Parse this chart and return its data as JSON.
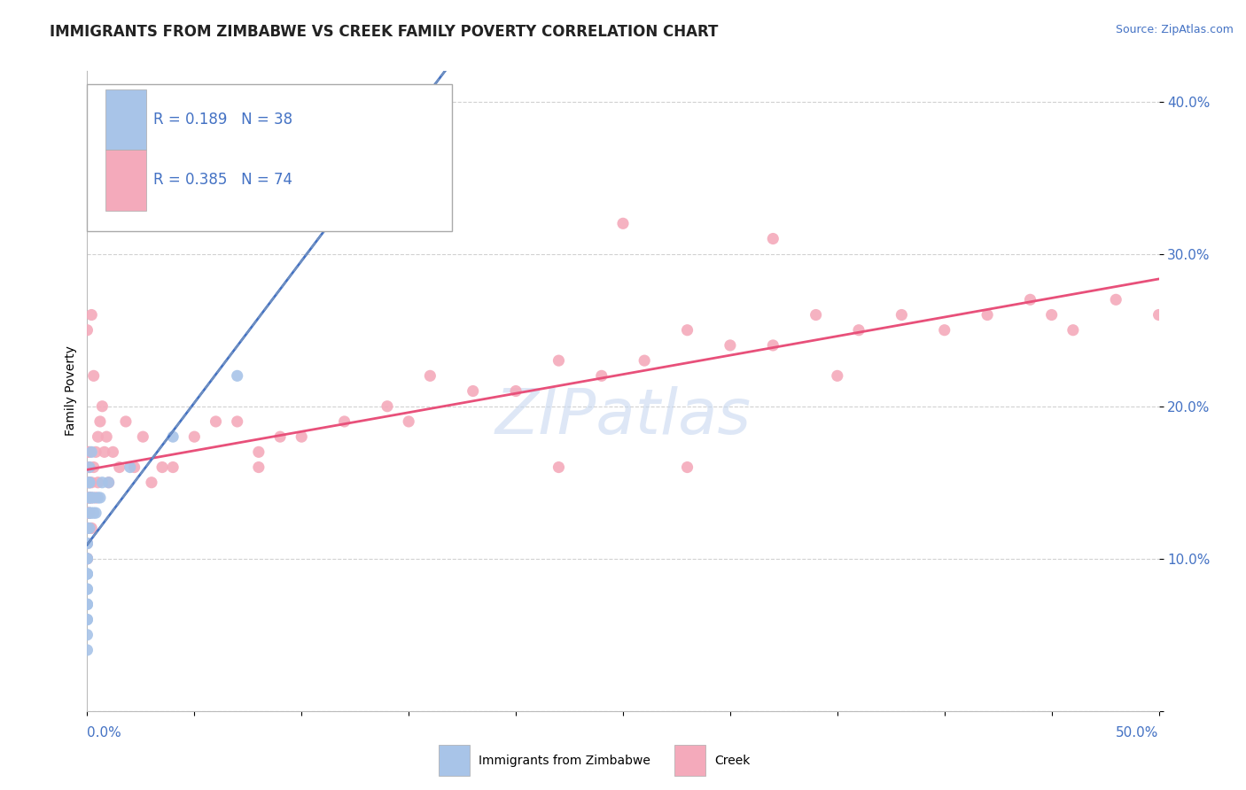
{
  "title": "IMMIGRANTS FROM ZIMBABWE VS CREEK FAMILY POVERTY CORRELATION CHART",
  "source": "Source: ZipAtlas.com",
  "ylabel": "Family Poverty",
  "legend_label1": "Immigrants from Zimbabwe",
  "legend_label2": "Creek",
  "R1": 0.189,
  "N1": 38,
  "R2": 0.385,
  "N2": 74,
  "blue_color": "#A8C4E8",
  "pink_color": "#F4AABB",
  "blue_line_color": "#4472C4",
  "pink_line_color": "#E8507A",
  "blue_dash_color": "#7090C0",
  "legend_text_color": "#4472C4",
  "watermark_color": "#C8D8F0",
  "axis_tick_color": "#4472C4",
  "title_color": "#222222",
  "source_color": "#4472C4",
  "grid_color": "#CCCCCC",
  "bg_color": "#FFFFFF",
  "blue_scatter_x": [
    0.0,
    0.0,
    0.0,
    0.0,
    0.0,
    0.0,
    0.0,
    0.0,
    0.0,
    0.0,
    0.0,
    0.0,
    0.0,
    0.0,
    0.0,
    0.0,
    0.0,
    0.001,
    0.001,
    0.001,
    0.001,
    0.001,
    0.001,
    0.001,
    0.001,
    0.002,
    0.002,
    0.002,
    0.003,
    0.003,
    0.004,
    0.005,
    0.006,
    0.007,
    0.01,
    0.02,
    0.04,
    0.07
  ],
  "blue_scatter_y": [
    0.04,
    0.05,
    0.06,
    0.06,
    0.07,
    0.07,
    0.07,
    0.08,
    0.08,
    0.09,
    0.09,
    0.09,
    0.1,
    0.1,
    0.11,
    0.11,
    0.12,
    0.12,
    0.13,
    0.13,
    0.14,
    0.14,
    0.15,
    0.15,
    0.16,
    0.13,
    0.14,
    0.17,
    0.13,
    0.14,
    0.13,
    0.14,
    0.14,
    0.15,
    0.15,
    0.16,
    0.18,
    0.22
  ],
  "pink_scatter_x": [
    0.0,
    0.0,
    0.0,
    0.0,
    0.0,
    0.0,
    0.0,
    0.0,
    0.0,
    0.0,
    0.0,
    0.0,
    0.001,
    0.001,
    0.001,
    0.001,
    0.001,
    0.002,
    0.002,
    0.002,
    0.002,
    0.003,
    0.003,
    0.004,
    0.004,
    0.005,
    0.005,
    0.006,
    0.007,
    0.008,
    0.009,
    0.01,
    0.012,
    0.015,
    0.018,
    0.022,
    0.026,
    0.03,
    0.035,
    0.04,
    0.05,
    0.06,
    0.07,
    0.08,
    0.09,
    0.1,
    0.12,
    0.14,
    0.16,
    0.18,
    0.2,
    0.22,
    0.24,
    0.26,
    0.28,
    0.3,
    0.32,
    0.34,
    0.36,
    0.38,
    0.4,
    0.42,
    0.44,
    0.46,
    0.48,
    0.5,
    0.35,
    0.28,
    0.22,
    0.08,
    0.15,
    0.25,
    0.32,
    0.45
  ],
  "pink_scatter_y": [
    0.1,
    0.11,
    0.12,
    0.13,
    0.14,
    0.15,
    0.16,
    0.17,
    0.25,
    0.12,
    0.1,
    0.13,
    0.13,
    0.14,
    0.15,
    0.16,
    0.17,
    0.14,
    0.15,
    0.26,
    0.12,
    0.16,
    0.22,
    0.14,
    0.17,
    0.15,
    0.18,
    0.19,
    0.2,
    0.17,
    0.18,
    0.15,
    0.17,
    0.16,
    0.19,
    0.16,
    0.18,
    0.15,
    0.16,
    0.16,
    0.18,
    0.19,
    0.19,
    0.17,
    0.18,
    0.18,
    0.19,
    0.2,
    0.22,
    0.21,
    0.21,
    0.23,
    0.22,
    0.23,
    0.25,
    0.24,
    0.24,
    0.26,
    0.25,
    0.26,
    0.25,
    0.26,
    0.27,
    0.25,
    0.27,
    0.26,
    0.22,
    0.16,
    0.16,
    0.16,
    0.19,
    0.32,
    0.31,
    0.26
  ],
  "xlim": [
    0.0,
    0.5
  ],
  "ylim": [
    0.0,
    0.42
  ],
  "ytick_vals": [
    0.0,
    0.1,
    0.2,
    0.3,
    0.4
  ],
  "ytick_labels": [
    "",
    "10.0%",
    "20.0%",
    "30.0%",
    "40.0%"
  ],
  "title_fontsize": 12,
  "ylabel_fontsize": 10,
  "tick_fontsize": 11,
  "source_fontsize": 9,
  "legend_fontsize": 12,
  "watermark_fontsize": 52
}
